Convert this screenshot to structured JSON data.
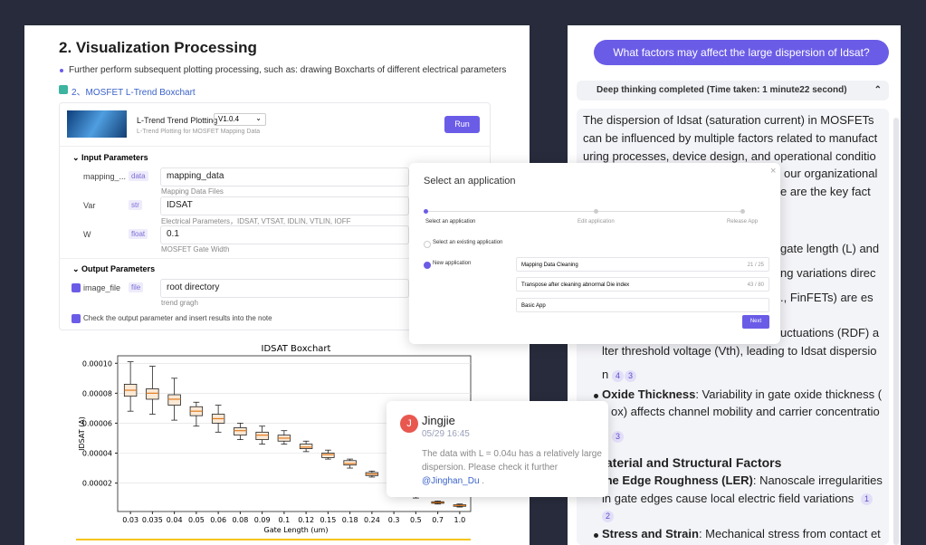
{
  "left": {
    "heading": "2. Visualization Processing",
    "bullet": "Further perform subsequent plotting processing, such as: drawing Boxcharts of different electrical parameters",
    "section_link": "2、MOSFET L-Trend Boxchart",
    "tool": {
      "name": "L-Trend Trend Plotting",
      "version": "V1.0.4",
      "description": "L-Trend Plotting for MOSFET Mapping Data",
      "run": "Run"
    },
    "input": {
      "title": "Input Parameters",
      "rows": [
        {
          "name": "mapping_...",
          "type": "data",
          "value": "mapping_data",
          "hint": "Mapping Data Files"
        },
        {
          "name": "Var",
          "type": "str",
          "value": "IDSAT",
          "hint": "Electrical Parameters，IDSAT, VTSAT, IDLIN, VTLIN, IOFF"
        },
        {
          "name": "W",
          "type": "float",
          "value": "0.1",
          "hint": "MOSFET Gate Width"
        }
      ]
    },
    "output": {
      "title": "Output Parameters",
      "rows": [
        {
          "name": "image_file",
          "type": "file",
          "value": "root directory",
          "hint": "trend gragh"
        }
      ],
      "insert_note": "Check the output parameter and insert results into the note"
    }
  },
  "chart_data": {
    "type": "box",
    "title": "IDSAT Boxchart",
    "x_label": "Gate Length (um)",
    "y_label": "IDSAT (A)",
    "categories": [
      "0.03",
      "0.035",
      "0.04",
      "0.05",
      "0.06",
      "0.08",
      "0.09",
      "0.1",
      "0.12",
      "0.15",
      "0.18",
      "0.24",
      "0.3",
      "0.5",
      "0.7",
      "1.0"
    ],
    "median": [
      8.2e-05,
      8e-05,
      7.6e-05,
      6.8e-05,
      6.3e-05,
      5.5e-05,
      5.2e-05,
      5e-05,
      4.4e-05,
      3.9e-05,
      3.3e-05,
      2.6e-05,
      2e-05,
      1.2e-05,
      7e-06,
      5e-06
    ],
    "q1": [
      7.8e-05,
      7.6e-05,
      7.2e-05,
      6.5e-05,
      6e-05,
      5.2e-05,
      4.9e-05,
      4.8e-05,
      4.3e-05,
      3.7e-05,
      3.2e-05,
      2.5e-05,
      1.9e-05,
      1.1e-05,
      6.5e-06,
      4.5e-06
    ],
    "q3": [
      8.6e-05,
      8.3e-05,
      7.9e-05,
      7.1e-05,
      6.6e-05,
      5.7e-05,
      5.4e-05,
      5.2e-05,
      4.6e-05,
      4e-05,
      3.5e-05,
      2.7e-05,
      2.1e-05,
      1.3e-05,
      7.5e-06,
      5.5e-06
    ],
    "whisker_low": [
      6.8e-05,
      6.6e-05,
      6.2e-05,
      5.8e-05,
      5.4e-05,
      4.9e-05,
      4.6e-05,
      4.6e-05,
      4.1e-05,
      3.6e-05,
      3e-05,
      2.4e-05,
      1.8e-05,
      1e-05,
      6e-06,
      4e-06
    ],
    "whisker_high": [
      0.000101,
      9.8e-05,
      9e-05,
      7.4e-05,
      7.2e-05,
      6e-05,
      5.8e-05,
      5.5e-05,
      4.8e-05,
      4.2e-05,
      3.6e-05,
      2.8e-05,
      2.2e-05,
      1.4e-05,
      8e-06,
      6e-06
    ],
    "ylim": [
      1e-06,
      0.000105
    ],
    "yticks": [
      {
        "value": 2e-05,
        "label": "0.00002"
      },
      {
        "value": 4e-05,
        "label": "0.00004"
      },
      {
        "value": 6e-05,
        "label": "0.00006"
      },
      {
        "value": 8e-05,
        "label": "0.00008"
      },
      {
        "value": 0.0001,
        "label": "0.00010"
      }
    ],
    "color": "#fbe9d6"
  },
  "dialog": {
    "title": "Select an application",
    "steps": [
      "Select an application",
      "Edit application",
      "Release App"
    ],
    "existing": "Select an existing application",
    "new": "New application",
    "fields": [
      {
        "value": "Mapping Data Cleaning",
        "count": "21 / 25"
      },
      {
        "value": "Transpose after cleaning abnormal Die index",
        "count": "43 / 80"
      },
      {
        "value": "Basic App"
      }
    ],
    "next": "Next"
  },
  "comment": {
    "avatar": "J",
    "author": "Jingjie",
    "date": "05/29 16:45",
    "text": "The data with L = 0.04u has a relatively large dispersion. Please check it further ",
    "mention": "@Jinghan_Du",
    "end": " ."
  },
  "chat": {
    "question": "What factors may affect the large dispersion of Idsat?",
    "thinking": "Deep thinking completed (Time taken: 1 minute22 second)",
    "answer_lines": [
      "The dispersion of Idsat (saturation current) in MOSFETs",
      "can be influenced by multiple factors related to manufact",
      "uring processes, device design, and operational conditio",
      "our organizational",
      "e are the key fact",
      "gate length (L) and",
      "ng variations direc",
      "., FinFETs) are es",
      "uctuations (RDF) a",
      "lter threshold voltage (Vth), leading to Idsat dispersio",
      "n",
      {
        "bold": "Oxide Thickness",
        "text": ": Variability in gate oxide thickness ("
      },
      "ox) affects channel mobility and carrier concentratio",
      {
        "heading": "laterial and Structural Factors"
      },
      {
        "bold": "ine Edge Roughness (LER)",
        "text": ": Nanoscale irregularities"
      },
      "in gate edges cause local electric field variations",
      {
        "bold": "Stress and Strain",
        "text": ": Mechanical stress from contact et"
      }
    ],
    "badges": [
      "4",
      "3",
      "3",
      "1",
      "2"
    ]
  }
}
